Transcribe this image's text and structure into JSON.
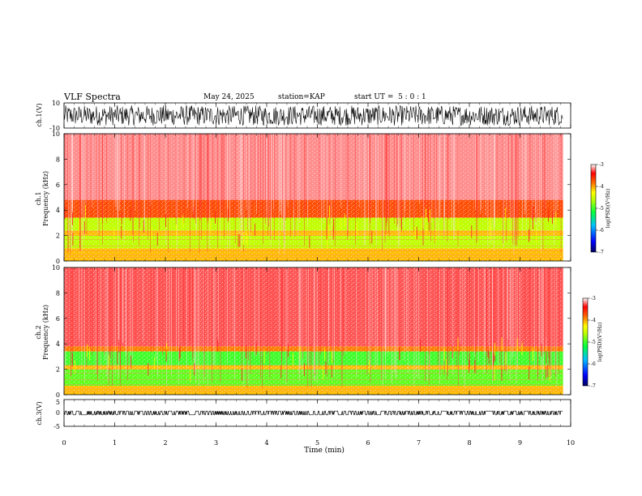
{
  "header": {
    "title": "VLF Spectra",
    "date": "May 24, 2025",
    "station": "station=KAP",
    "start": "start UT =  5 : 0 : 1"
  },
  "chart_data": [
    {
      "type": "line",
      "name": "ch1-waveform",
      "ylabel": "ch.1(V)",
      "xlim": [
        0,
        10
      ],
      "ylim": [
        -10,
        10
      ],
      "ytick_labels": [
        "10",
        "-10"
      ],
      "data_end_min": 9.85,
      "amplitude_range": [
        -8,
        8
      ]
    },
    {
      "type": "heatmap",
      "name": "ch1-spectrogram",
      "ylabel": "ch.1\nFrequency (kHz)",
      "xlim": [
        0,
        10
      ],
      "ylim": [
        0,
        10
      ],
      "ytick_labels": [
        "0",
        "2",
        "4",
        "6",
        "8",
        "10"
      ],
      "colorbar": {
        "label": "log(PSD)(V²/Hz)",
        "range": [
          -7,
          -3
        ],
        "tick_labels": [
          "-3",
          "-4",
          "-5",
          "-6",
          "-7"
        ]
      },
      "bands_khz": [
        {
          "from": 0,
          "to": 1.0,
          "level": -4.1
        },
        {
          "from": 1.0,
          "to": 2.0,
          "level": -4.6
        },
        {
          "from": 2.0,
          "to": 2.4,
          "level": -4.1
        },
        {
          "from": 2.4,
          "to": 3.4,
          "level": -4.6
        },
        {
          "from": 3.4,
          "to": 4.8,
          "level": -3.7
        },
        {
          "from": 4.8,
          "to": 10,
          "level": -3.2
        }
      ]
    },
    {
      "type": "heatmap",
      "name": "ch2-spectrogram",
      "ylabel": "ch.2\nFrequency (kHz)",
      "xlim": [
        0,
        10
      ],
      "ylim": [
        0,
        10
      ],
      "ytick_labels": [
        "0",
        "2",
        "4",
        "6",
        "8",
        "10"
      ],
      "colorbar": {
        "label": "log(PSD)(V²/Hz)",
        "range": [
          -7,
          -3
        ],
        "tick_labels": [
          "-3",
          "-4",
          "-5",
          "-6",
          "-7"
        ]
      },
      "bands_khz": [
        {
          "from": 0,
          "to": 0.7,
          "level": -4.1
        },
        {
          "from": 0.7,
          "to": 2.0,
          "level": -4.9
        },
        {
          "from": 2.0,
          "to": 2.3,
          "level": -4.1
        },
        {
          "from": 2.3,
          "to": 3.4,
          "level": -5.0
        },
        {
          "from": 3.4,
          "to": 3.8,
          "level": -3.9
        },
        {
          "from": 3.8,
          "to": 10,
          "level": -3.3
        }
      ]
    },
    {
      "type": "line",
      "name": "ch3-waveform",
      "ylabel": "ch.3(V)",
      "xlabel": "Time (min)",
      "xlim": [
        0,
        10
      ],
      "ylim": [
        -5,
        5
      ],
      "ytick_labels": [
        "5",
        "0",
        "-5"
      ],
      "xtick_labels": [
        "0",
        "1",
        "2",
        "3",
        "4",
        "5",
        "6",
        "7",
        "8",
        "9",
        "10"
      ],
      "data_end_min": 9.85,
      "amplitude_range": [
        -0.7,
        0.7
      ]
    }
  ]
}
